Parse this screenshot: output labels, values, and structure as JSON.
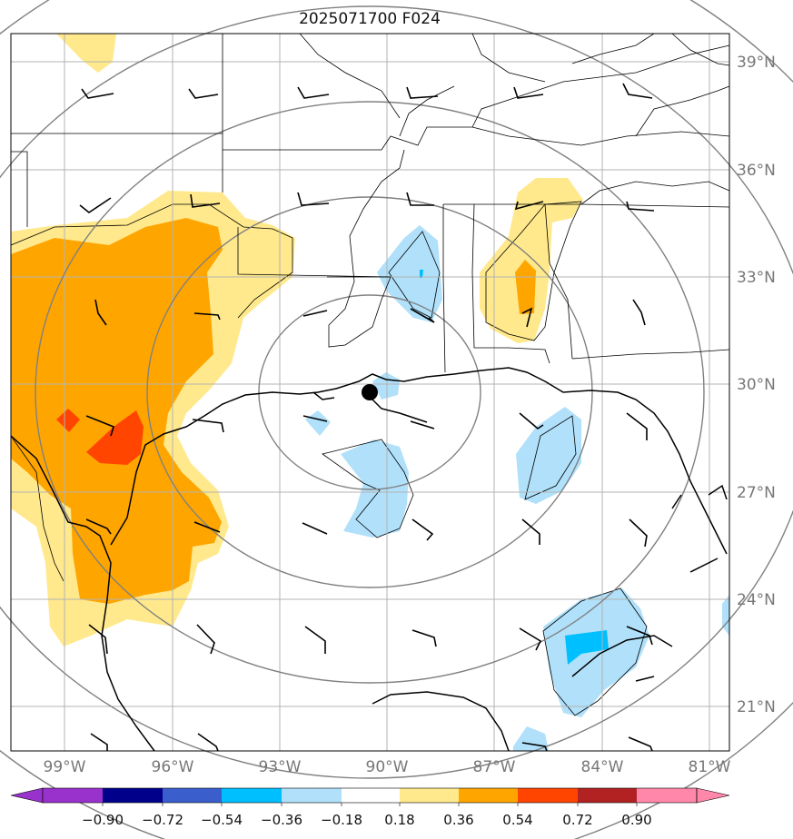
{
  "title": "2025071700 F024",
  "map": {
    "center_marker": {
      "lon": -90.5,
      "lat": 29.8
    },
    "lat_labels": [
      "39°N",
      "36°N",
      "33°N",
      "30°N",
      "27°N",
      "24°N",
      "21°N"
    ],
    "lon_labels": [
      "99°W",
      "96°W",
      "93°W",
      "90°W",
      "87°W",
      "84°W",
      "81°W"
    ],
    "range_rings": 5
  },
  "colorbar": {
    "tick_labels": [
      "−0.90",
      "−0.72",
      "−0.54",
      "−0.36",
      "−0.18",
      "0.18",
      "0.36",
      "0.54",
      "0.72",
      "0.90"
    ],
    "colors": [
      "#9932cc",
      "#00008b",
      "#3a5fcd",
      "#00bfff",
      "#b0e0fa",
      "#ffffff",
      "#ffe98c",
      "#ffa500",
      "#ff4500",
      "#b22222",
      "#ff88aa"
    ],
    "extend": "both"
  }
}
